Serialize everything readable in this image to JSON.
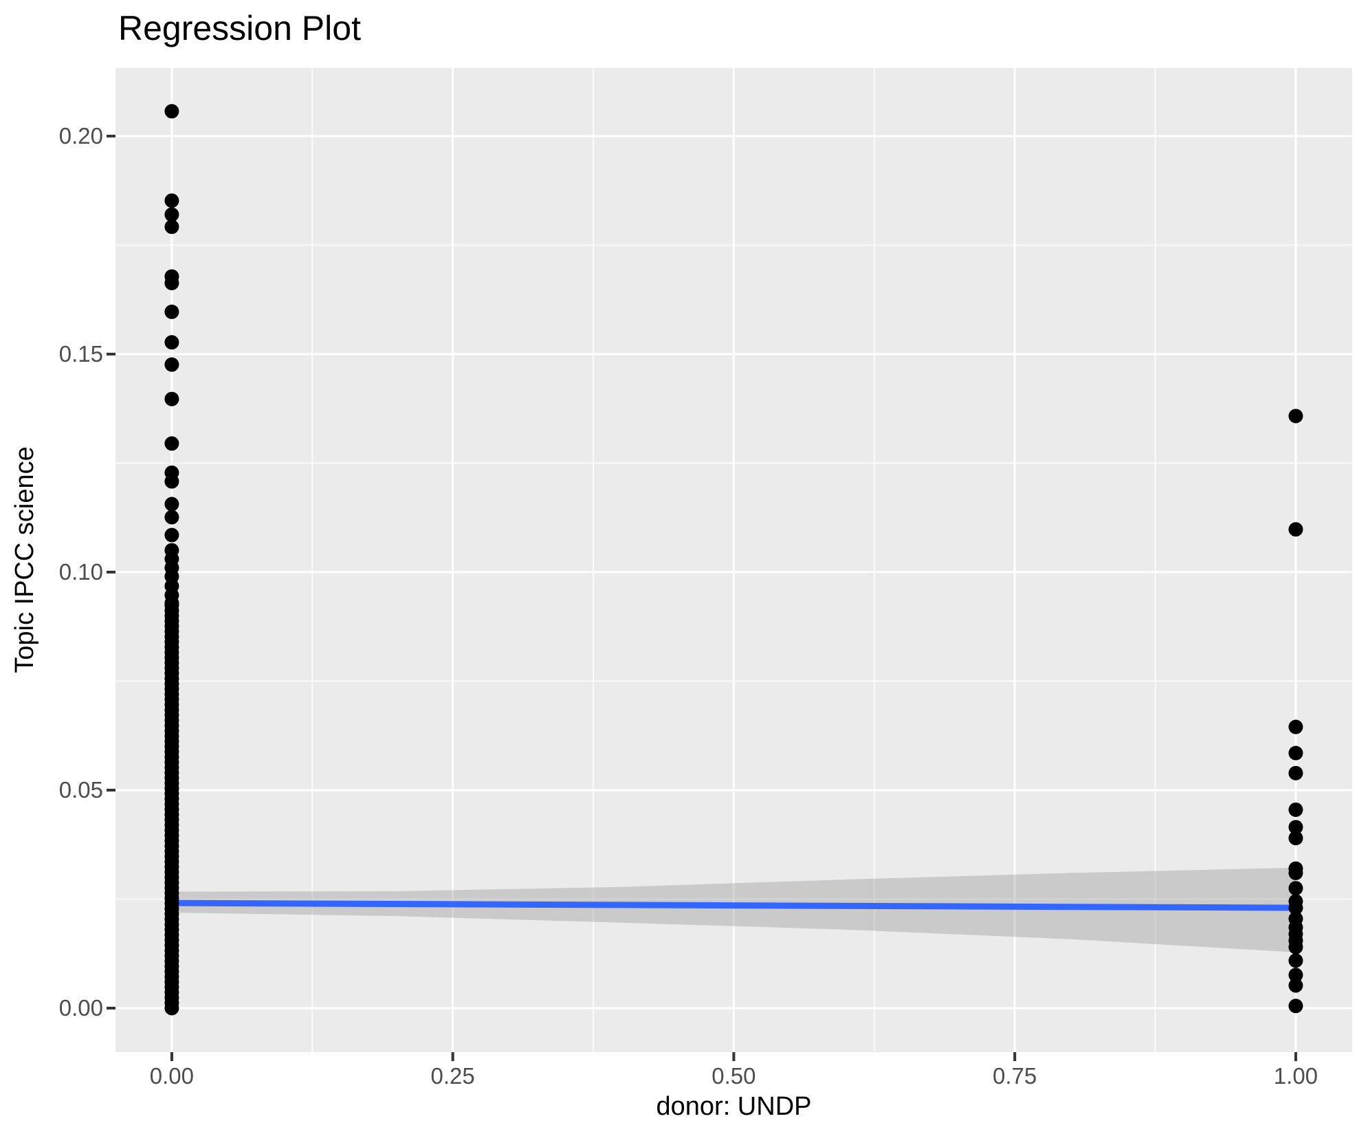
{
  "title": "Regression Plot",
  "axes": {
    "x": {
      "title": "donor: UNDP",
      "tick_labels": [
        "0.00",
        "0.25",
        "0.50",
        "0.75",
        "1.00"
      ],
      "tick_values": [
        0,
        0.25,
        0.5,
        0.75,
        1.0
      ]
    },
    "y": {
      "title": "Topic IPCC science",
      "tick_labels": [
        "0.00",
        "0.05",
        "0.10",
        "0.15",
        "0.20"
      ],
      "tick_values": [
        0,
        0.05,
        0.1,
        0.15,
        0.2
      ]
    }
  },
  "colors": {
    "panel_background": "#EBEBEB",
    "grid_line": "#FFFFFF",
    "point": "#000000",
    "smooth_line": "#3366FF",
    "ci_band": "#999999",
    "ci_band_opacity": 0.4,
    "tick_text": "#4D4D4D",
    "tick_mark": "#333333",
    "title_text": "#000000"
  },
  "chart_data": {
    "type": "scatter",
    "title": "Regression Plot",
    "xlabel": "donor: UNDP",
    "ylabel": "Topic IPCC science",
    "xlim": [
      -0.05,
      1.05
    ],
    "ylim": [
      -0.01,
      0.2156
    ],
    "grid": "white major and minor gridlines on gray panel (ggplot style)",
    "legend": "none",
    "series": [
      {
        "name": "observations at donor=0",
        "x_value": 0,
        "y_distinct": [
          0.2057,
          0.1852,
          0.182,
          0.1792,
          0.1678,
          0.1663,
          0.1597,
          0.1527,
          0.1476,
          0.1397,
          0.1295,
          0.1228,
          0.1208,
          0.1156,
          0.1126,
          0.1085,
          0.105,
          0.103,
          0.101,
          0.099,
          0.0968,
          0.0947,
          0.0929
        ],
        "y_dense_overplotted_range": {
          "from": 0.0,
          "to": 0.093,
          "step": 0.0012,
          "note": "solid overplotted column of many observations"
        }
      },
      {
        "name": "observations at donor=1",
        "x_value": 1,
        "y_distinct": [
          0.1358,
          0.1098,
          0.0645,
          0.0585,
          0.0539,
          0.0455,
          0.0415,
          0.039,
          0.032,
          0.031,
          0.0275,
          0.0245,
          0.023,
          0.0205,
          0.0185,
          0.017,
          0.0155,
          0.014,
          0.0109,
          0.0076,
          0.0052,
          0.0005
        ]
      }
    ],
    "regression": {
      "line": {
        "x": [
          0,
          1
        ],
        "y": [
          0.0241,
          0.023
        ]
      },
      "confidence_band": {
        "x": [
          0,
          0.2,
          0.4,
          0.6,
          0.8,
          1.0
        ],
        "upper": [
          0.0267,
          0.0268,
          0.0278,
          0.0295,
          0.031,
          0.0322
        ],
        "lower": [
          0.0219,
          0.0211,
          0.0196,
          0.018,
          0.0158,
          0.0128
        ]
      }
    }
  }
}
